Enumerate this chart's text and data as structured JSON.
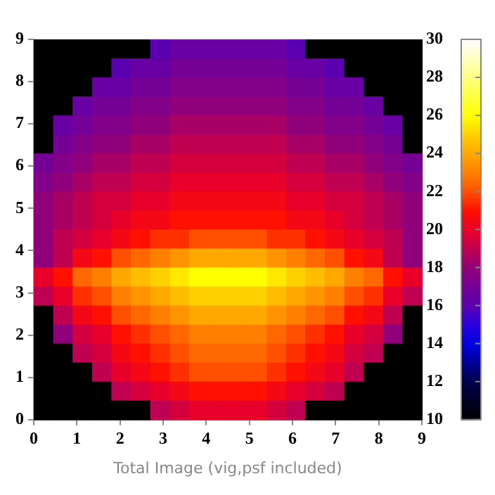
{
  "chart_data": {
    "type": "heatmap",
    "xlabel": "Total Image (vig,psf included)",
    "x": [
      0.225,
      0.675,
      1.125,
      1.575,
      2.025,
      2.475,
      2.925,
      3.375,
      3.825,
      4.275,
      4.725,
      5.175,
      5.625,
      6.075,
      6.525,
      6.975,
      7.425,
      7.875,
      8.325,
      8.775
    ],
    "y": [
      8.775,
      8.325,
      7.875,
      7.425,
      6.975,
      6.525,
      6.075,
      5.625,
      5.175,
      4.725,
      4.275,
      3.825,
      3.375,
      2.925,
      2.475,
      2.025,
      1.575,
      1.125,
      0.675,
      0.225
    ],
    "xlim": [
      0,
      9
    ],
    "xticks": [
      0,
      1,
      2,
      3,
      4,
      5,
      6,
      7,
      8,
      9
    ],
    "ylim": [
      0,
      9
    ],
    "yticks": [
      0,
      1,
      2,
      3,
      4,
      5,
      6,
      7,
      8,
      9
    ],
    "clim": [
      10,
      30
    ],
    "cticks": [
      10,
      12,
      14,
      16,
      18,
      20,
      22,
      24,
      26,
      28,
      30
    ],
    "cells": [
      [
        10,
        10,
        10,
        10,
        10,
        10,
        16,
        16.5,
        16.5,
        16.5,
        16.5,
        16.5,
        16.5,
        16,
        10,
        10,
        10,
        10,
        10,
        10
      ],
      [
        10,
        10,
        10,
        10,
        16,
        16.5,
        16.5,
        17,
        17,
        17,
        17,
        17,
        17,
        16.5,
        16.5,
        16,
        10,
        10,
        10,
        10
      ],
      [
        10,
        10,
        10,
        16.5,
        16.5,
        17,
        17,
        17.5,
        17.5,
        17.5,
        17.5,
        17.5,
        17.5,
        17,
        17,
        16.5,
        16.5,
        10,
        10,
        10
      ],
      [
        10,
        10,
        16.5,
        17,
        17,
        17.5,
        17.5,
        18,
        18,
        18,
        18,
        18,
        18,
        17.5,
        17.5,
        17,
        17,
        16.5,
        10,
        10
      ],
      [
        10,
        16.5,
        17,
        17.5,
        17.5,
        18,
        18,
        18.5,
        18.5,
        18.5,
        18.5,
        18.5,
        18.5,
        18,
        18,
        17.5,
        17.5,
        17,
        16.5,
        10
      ],
      [
        10,
        17,
        17.5,
        18,
        18,
        18.5,
        18.5,
        19,
        19,
        19,
        19,
        19,
        19,
        18.5,
        18.5,
        18,
        18,
        17.5,
        17,
        10
      ],
      [
        17,
        17.5,
        18,
        18.5,
        18.5,
        19,
        19,
        19.5,
        19.5,
        19.5,
        19.5,
        19.5,
        19.5,
        19,
        19,
        18.5,
        18.5,
        18,
        17.5,
        17
      ],
      [
        17.5,
        18,
        18.5,
        19,
        19,
        19.5,
        19.5,
        20,
        20,
        20,
        20,
        20,
        20,
        19.5,
        19.5,
        19,
        19,
        18.5,
        18,
        17.5
      ],
      [
        18,
        18.5,
        19,
        19.5,
        19.5,
        20,
        20,
        20.5,
        20.5,
        20.5,
        20.5,
        20.5,
        20.5,
        20,
        20,
        19.5,
        19.5,
        19,
        18.5,
        18
      ],
      [
        18,
        18.5,
        19,
        19.5,
        20,
        20.5,
        20.5,
        21,
        21,
        21,
        21,
        21,
        21,
        20.5,
        20.5,
        20,
        19.5,
        19,
        18.5,
        18
      ],
      [
        18,
        19,
        19.5,
        20,
        20.5,
        21,
        21.5,
        21.5,
        22,
        22,
        22,
        22,
        21.5,
        21.5,
        21,
        20.5,
        20,
        19.5,
        19,
        18
      ],
      [
        18,
        19,
        20.5,
        21,
        22,
        22.5,
        23,
        23.5,
        24,
        24,
        24,
        24,
        23.5,
        23,
        22.5,
        22,
        21,
        20.5,
        19,
        18
      ],
      [
        20,
        21,
        22.5,
        23,
        24,
        24.5,
        25,
        25.5,
        26,
        26,
        26,
        26,
        25.5,
        25,
        24.5,
        24,
        23,
        22.5,
        21,
        20
      ],
      [
        19,
        20,
        21.5,
        22,
        23,
        23.5,
        24,
        24.5,
        25,
        25,
        25,
        25,
        24.5,
        24,
        23.5,
        23,
        22,
        21.5,
        20,
        19
      ],
      [
        10,
        19,
        20.5,
        21,
        22,
        22.5,
        23,
        23.5,
        24,
        24,
        24,
        24,
        23.5,
        23,
        22.5,
        22,
        21,
        20.5,
        19,
        10
      ],
      [
        10,
        18,
        19.5,
        20,
        21,
        21.5,
        22,
        22.5,
        23,
        23,
        23,
        23,
        22.5,
        22,
        21.5,
        21,
        20,
        19.5,
        18,
        10
      ],
      [
        10,
        10,
        19,
        19.5,
        20.5,
        21,
        21.5,
        22,
        22.5,
        22.5,
        22.5,
        22.5,
        22,
        21.5,
        21,
        20.5,
        19.5,
        19,
        10,
        10
      ],
      [
        10,
        10,
        10,
        19,
        20,
        20.5,
        21,
        21.5,
        22,
        22,
        22,
        22,
        21.5,
        21,
        20.5,
        20,
        19,
        10,
        10,
        10
      ],
      [
        10,
        10,
        10,
        10,
        19,
        19.5,
        20,
        20.5,
        21,
        21,
        21,
        21,
        20.5,
        20,
        19.5,
        19,
        10,
        10,
        10,
        10
      ],
      [
        10,
        10,
        10,
        10,
        10,
        10,
        19,
        19.5,
        20,
        20,
        20,
        20,
        19.5,
        19,
        10,
        10,
        10,
        10,
        10,
        10
      ]
    ]
  }
}
